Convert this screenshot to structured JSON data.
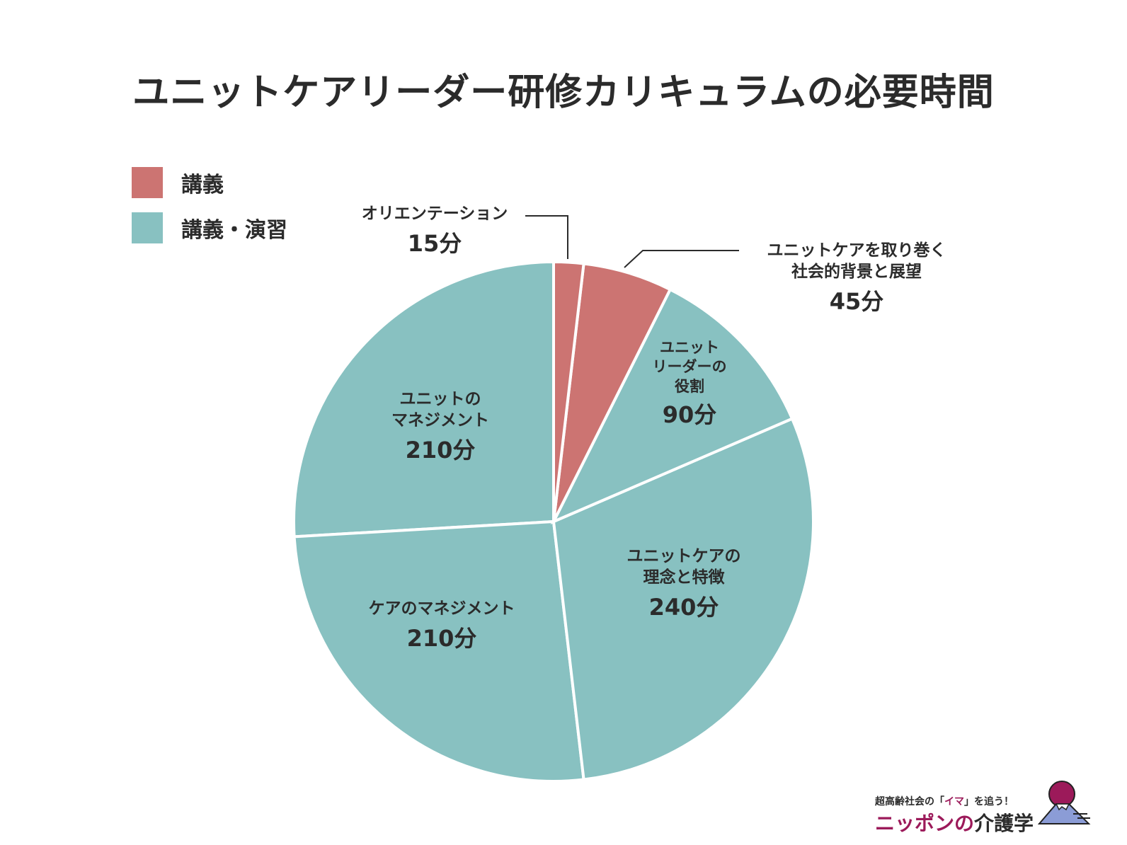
{
  "title": "ユニットケアリーダー研修カリキュラムの必要時間",
  "chart_data": {
    "type": "pie",
    "title": "ユニットケアリーダー研修カリキュラムの必要時間",
    "unit": "分",
    "legend": [
      {
        "label": "講義",
        "color": "#cc7472"
      },
      {
        "label": "講義・演習",
        "color": "#88c1c1"
      }
    ],
    "legend_position": "top-left",
    "slices": [
      {
        "label_lines": [
          "オリエンテーション"
        ],
        "value": 15,
        "value_label": "15分",
        "category": "講義",
        "color": "#cc7472"
      },
      {
        "label_lines": [
          "ユニットケアを取り巻く",
          "社会的背景と展望"
        ],
        "value": 45,
        "value_label": "45分",
        "category": "講義",
        "color": "#cc7472"
      },
      {
        "label_lines": [
          "ユニット",
          "リーダーの",
          "役割"
        ],
        "value": 90,
        "value_label": "90分",
        "category": "講義・演習",
        "color": "#88c1c1"
      },
      {
        "label_lines": [
          "ユニットケアの",
          "理念と特徴"
        ],
        "value": 240,
        "value_label": "240分",
        "category": "講義・演習",
        "color": "#88c1c1"
      },
      {
        "label_lines": [
          "ケアのマネジメント"
        ],
        "value": 210,
        "value_label": "210分",
        "category": "講義・演習",
        "color": "#88c1c1"
      },
      {
        "label_lines": [
          "ユニットの",
          "マネジメント"
        ],
        "value": 210,
        "value_label": "210分",
        "category": "講義・演習",
        "color": "#88c1c1"
      }
    ]
  },
  "logo": {
    "tagline_pre": "超高齢社会の「",
    "tagline_accent": "イマ",
    "tagline_post": "」を追う！",
    "name_accent": "ニッポンの",
    "name_main": "介護学"
  }
}
